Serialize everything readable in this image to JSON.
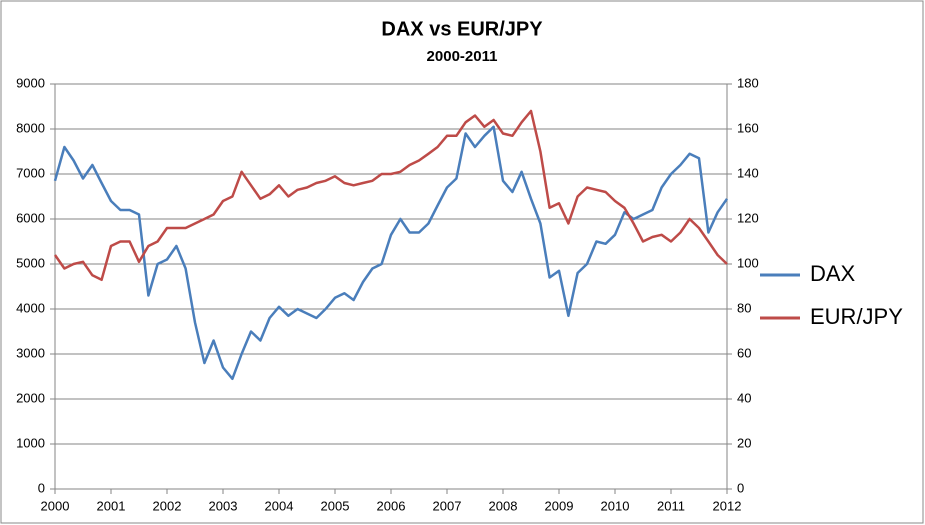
{
  "chart_data": {
    "type": "line",
    "title": "DAX vs EUR/JPY",
    "subtitle": "2000-2011",
    "x": [
      2000,
      2000.167,
      2000.333,
      2000.5,
      2000.667,
      2000.833,
      2001,
      2001.167,
      2001.333,
      2001.5,
      2001.667,
      2001.833,
      2002,
      2002.167,
      2002.333,
      2002.5,
      2002.667,
      2002.833,
      2003,
      2003.167,
      2003.333,
      2003.5,
      2003.667,
      2003.833,
      2004,
      2004.167,
      2004.333,
      2004.5,
      2004.667,
      2004.833,
      2005,
      2005.167,
      2005.333,
      2005.5,
      2005.667,
      2005.833,
      2006,
      2006.167,
      2006.333,
      2006.5,
      2006.667,
      2006.833,
      2007,
      2007.167,
      2007.333,
      2007.5,
      2007.667,
      2007.833,
      2008,
      2008.167,
      2008.333,
      2008.5,
      2008.667,
      2008.833,
      2009,
      2009.167,
      2009.333,
      2009.5,
      2009.667,
      2009.833,
      2010,
      2010.167,
      2010.333,
      2010.5,
      2010.667,
      2010.833,
      2011,
      2011.167,
      2011.333,
      2011.5,
      2011.667,
      2011.833,
      2012
    ],
    "series": [
      {
        "name": "DAX",
        "color": "#4a7ebb",
        "values": [
          6850,
          7600,
          7300,
          6900,
          7200,
          6800,
          6400,
          6200,
          6200,
          6100,
          4300,
          5000,
          5100,
          5400,
          4900,
          3700,
          2800,
          3300,
          2700,
          2450,
          3000,
          3500,
          3300,
          3800,
          4050,
          3850,
          4000,
          3900,
          3800,
          4000,
          4250,
          4350,
          4200,
          4600,
          4900,
          5000,
          5650,
          6000,
          5700,
          5700,
          5900,
          6300,
          6700,
          6900,
          7900,
          7600,
          7850,
          8050,
          6850,
          6600,
          7050,
          6450,
          5900,
          4700,
          4850,
          3850,
          4800,
          5000,
          5500,
          5450,
          5650,
          6150,
          6000,
          6100,
          6200,
          6700,
          7000,
          7200,
          7450,
          7350,
          5700,
          6150,
          6450
        ]
      },
      {
        "name": "EUR/JPY",
        "color": "#be4b48",
        "axis": "y2",
        "values": [
          104,
          98,
          100,
          101,
          95,
          93,
          108,
          110,
          110,
          101,
          108,
          110,
          116,
          116,
          116,
          118,
          120,
          122,
          128,
          130,
          141,
          135,
          129,
          131,
          135,
          130,
          133,
          134,
          136,
          137,
          139,
          136,
          135,
          136,
          137,
          140,
          140,
          141,
          144,
          146,
          149,
          152,
          157,
          157,
          163,
          166,
          161,
          164,
          158,
          157,
          163,
          168,
          150,
          125,
          127,
          118,
          130,
          134,
          133,
          132,
          128,
          125,
          118,
          110,
          112,
          113,
          110,
          114,
          120,
          116,
          110,
          104,
          100
        ]
      }
    ],
    "xlim": [
      2000,
      2012
    ],
    "xticks": [
      2000,
      2001,
      2002,
      2003,
      2004,
      2005,
      2006,
      2007,
      2008,
      2009,
      2010,
      2011,
      2012
    ],
    "ylim": [
      0,
      9000
    ],
    "yticks": [
      0,
      1000,
      2000,
      3000,
      4000,
      5000,
      6000,
      7000,
      8000,
      9000
    ],
    "y2lim": [
      0,
      180
    ],
    "y2ticks": [
      0,
      20,
      40,
      60,
      80,
      100,
      120,
      140,
      160,
      180
    ],
    "grid": true,
    "legend": "right"
  }
}
